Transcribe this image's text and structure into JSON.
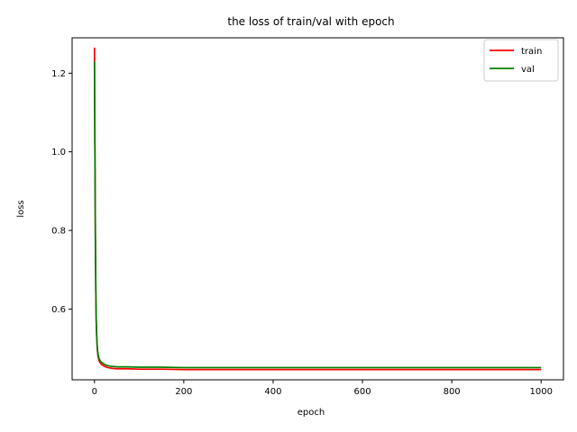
{
  "chart_data": {
    "type": "line",
    "title": "the loss of train/val with epoch",
    "xlabel": "epoch",
    "ylabel": "loss",
    "xlim": [
      -50,
      1050
    ],
    "ylim": [
      0.42,
      1.29
    ],
    "x_ticks": [
      0,
      200,
      400,
      600,
      800,
      1000
    ],
    "y_ticks": [
      0.6,
      0.8,
      1.0,
      1.2
    ],
    "x_tick_labels": [
      "0",
      "200",
      "400",
      "600",
      "800",
      "1000"
    ],
    "y_tick_labels": [
      "0.6",
      "0.8",
      "1.0",
      "1.2"
    ],
    "grid": false,
    "legend_position": "top-right",
    "series": [
      {
        "name": "train",
        "color": "#ff0000",
        "x": [
          0,
          1,
          2,
          3,
          4,
          5,
          6,
          7,
          8,
          10,
          12,
          15,
          20,
          25,
          30,
          40,
          50,
          75,
          100,
          150,
          200,
          300,
          400,
          500,
          600,
          700,
          800,
          900,
          1000
        ],
        "y": [
          1.265,
          1.02,
          0.8,
          0.65,
          0.57,
          0.53,
          0.505,
          0.49,
          0.48,
          0.47,
          0.465,
          0.46,
          0.456,
          0.453,
          0.451,
          0.449,
          0.448,
          0.448,
          0.447,
          0.447,
          0.446,
          0.446,
          0.446,
          0.446,
          0.446,
          0.446,
          0.446,
          0.446,
          0.446
        ]
      },
      {
        "name": "val",
        "color": "#008000",
        "x": [
          0,
          1,
          2,
          3,
          4,
          5,
          6,
          7,
          8,
          10,
          12,
          15,
          20,
          25,
          30,
          40,
          50,
          75,
          100,
          150,
          200,
          300,
          400,
          500,
          600,
          700,
          800,
          900,
          1000
        ],
        "y": [
          1.23,
          1.0,
          0.79,
          0.65,
          0.57,
          0.535,
          0.51,
          0.495,
          0.485,
          0.475,
          0.47,
          0.465,
          0.461,
          0.458,
          0.456,
          0.454,
          0.453,
          0.453,
          0.452,
          0.452,
          0.451,
          0.451,
          0.451,
          0.451,
          0.451,
          0.451,
          0.451,
          0.451,
          0.451
        ]
      }
    ]
  }
}
